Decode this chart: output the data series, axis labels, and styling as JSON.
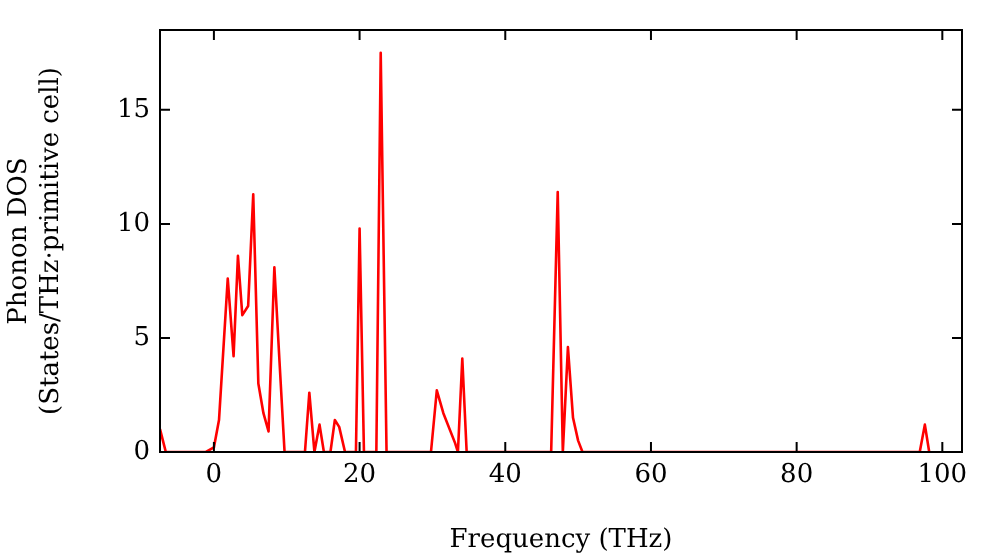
{
  "chart_data": {
    "type": "line",
    "xlabel": "Frequency (THz)",
    "ylabel": "Phonon DOS\n(States/THz·primitive cell)",
    "xlim": [
      -7.4,
      102.7
    ],
    "ylim": [
      0,
      18.5
    ],
    "xticks": [
      0,
      20,
      40,
      60,
      80,
      100
    ],
    "yticks": [
      0,
      5,
      10,
      15
    ],
    "grid": false,
    "legend": false,
    "marker": "none",
    "line_style": "solid",
    "series": [
      {
        "color": "#ff0000",
        "x": [
          -7.4,
          -6.6,
          -1.1,
          0,
          0.7,
          1.9,
          2.7,
          3.3,
          3.9,
          4.7,
          5.4,
          6.1,
          6.8,
          7.5,
          8.3,
          9.0,
          9.7,
          12.5,
          13.1,
          13.8,
          14.5,
          15.1,
          16.0,
          16.6,
          17.2,
          18.0,
          19.5,
          20.0,
          20.6,
          22.3,
          22.9,
          23.7,
          29.8,
          30.6,
          31.5,
          33.1,
          33.5,
          34.1,
          34.7,
          46.3,
          47.2,
          47.9,
          48.6,
          49.3,
          50.0,
          50.6,
          96.9,
          97.6,
          98.2
        ],
        "values": [
          1.0,
          0,
          0,
          0.2,
          1.4,
          7.6,
          4.2,
          8.6,
          6.0,
          6.4,
          11.3,
          3.0,
          1.7,
          0.9,
          8.1,
          4.0,
          0,
          0,
          2.6,
          0,
          1.2,
          0,
          0,
          1.4,
          1.1,
          0,
          0,
          9.8,
          0,
          0,
          17.5,
          0,
          0,
          2.7,
          1.7,
          0.4,
          0,
          4.1,
          0,
          0,
          11.4,
          0,
          4.6,
          1.5,
          0.5,
          0,
          0,
          1.2,
          0
        ]
      }
    ]
  }
}
